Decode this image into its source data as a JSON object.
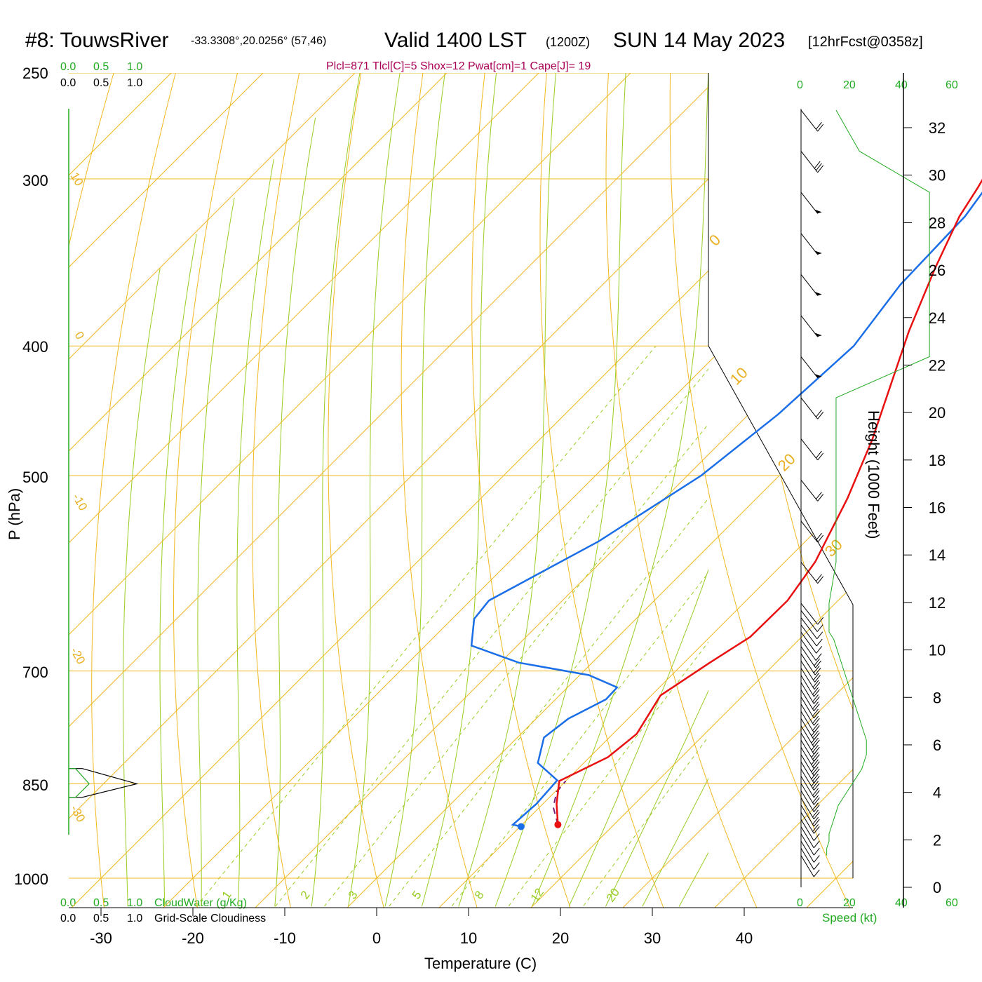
{
  "header": {
    "station": "#8: TouwsRiver",
    "coords": "-33.3308°,20.0256° (57,46)",
    "valid": "Valid 1400 LST",
    "utc": "(1200Z)",
    "date": "SUN 14 May 2023",
    "forecast": "[12hrFcst@0358z]"
  },
  "indices": "Plcl=871 Tlcl[C]=5 Shox=12 Pwat[cm]=1 Cape[J]= 19",
  "cloud_scale_top": {
    "green": [
      "0.0",
      "0.5",
      "1.0"
    ],
    "black": [
      "0.0",
      "0.5",
      "1.0"
    ]
  },
  "cloud_scale_bottom": {
    "green": [
      "0.0",
      "0.5",
      "1.0"
    ],
    "green_label": "CloudWater (g/Kg)",
    "black": [
      "0.0",
      "0.5",
      "1.0"
    ],
    "black_label": "Grid-Scale Cloudiness"
  },
  "wind_speed_axis": {
    "ticks": [
      "0",
      "20",
      "40",
      "60"
    ],
    "label": "Speed (kt)"
  },
  "colors": {
    "temperature": "#e81010",
    "dewpoint": "#1a6ee8",
    "parcel": "#7a1a7a",
    "isotherm": "#f0b820",
    "dry_adiabat": "#f0b820",
    "moist_adiabat": "#99cc22",
    "mixing_ratio": "#99cc22",
    "cloud_green": "#22aa22"
  },
  "chart_data": {
    "type": "line",
    "title": "",
    "xlabel": "Temperature (C)",
    "ylabel": "P (hPa)",
    "right_ylabel": "Height (1000 Feet)",
    "x_ticks": [
      "-30",
      "-20",
      "-10",
      "0",
      "10",
      "20",
      "30",
      "40"
    ],
    "pressure_ticks": [
      "250",
      "300",
      "400",
      "500",
      "700",
      "850",
      "1000"
    ],
    "height_ticks": [
      "32",
      "30",
      "28",
      "26",
      "24",
      "22",
      "20",
      "18",
      "16",
      "14",
      "12",
      "10",
      "8",
      "6",
      "4",
      "2",
      "0"
    ],
    "isotherm_labels": [
      "10",
      "0",
      "-10",
      "-20",
      "-30",
      "0",
      "10",
      "20",
      "30"
    ],
    "mixing_ratio_labels": [
      "1",
      "2",
      "3",
      "5",
      "8",
      "12",
      "20"
    ],
    "series": [
      {
        "name": "Temperature",
        "points": [
          [
            13.9,
            912
          ],
          [
            11.5,
            880
          ],
          [
            9.3,
            846
          ],
          [
            12.0,
            812
          ],
          [
            12.6,
            780
          ],
          [
            11.0,
            730
          ],
          [
            12.8,
            690
          ],
          [
            14.4,
            660
          ],
          [
            14.5,
            620
          ],
          [
            13.3,
            580
          ],
          [
            9.9,
            520
          ],
          [
            6.2,
            470
          ],
          [
            1.5,
            420
          ],
          [
            -1.6,
            390
          ],
          [
            -5.6,
            350
          ],
          [
            -8.6,
            320
          ],
          [
            -9.7,
            305
          ],
          [
            -11.0,
            290
          ],
          [
            -12.0,
            270
          ]
        ]
      },
      {
        "name": "Dewpoint",
        "points": [
          [
            10.1,
            915
          ],
          [
            9.0,
            912
          ],
          [
            9.3,
            880
          ],
          [
            9.0,
            845
          ],
          [
            5.0,
            820
          ],
          [
            2.9,
            785
          ],
          [
            3.5,
            760
          ],
          [
            5.5,
            735
          ],
          [
            5.4,
            720
          ],
          [
            1.0,
            705
          ],
          [
            -8.0,
            690
          ],
          [
            -15.0,
            670
          ],
          [
            -17.6,
            640
          ],
          [
            -18.0,
            620
          ],
          [
            -12.5,
            560
          ],
          [
            -8.5,
            500
          ],
          [
            -6.8,
            450
          ],
          [
            -6.0,
            400
          ],
          [
            -7.6,
            360
          ],
          [
            -8.0,
            320
          ],
          [
            -9.1,
            300
          ],
          [
            -11.0,
            285
          ],
          [
            -12.5,
            270
          ]
        ]
      },
      {
        "name": "Parcel",
        "points": [
          [
            13.9,
            912
          ],
          [
            11.5,
            885
          ],
          [
            10.2,
            862
          ],
          [
            10.0,
            846
          ]
        ]
      }
    ],
    "wind_barbs_speed_kt": [
      15,
      25,
      55,
      55,
      55,
      55,
      55,
      15,
      15,
      15,
      15,
      15,
      12,
      12,
      12,
      12,
      12,
      14,
      15,
      16,
      17,
      18,
      19,
      20,
      21,
      22,
      23,
      24,
      25,
      26,
      27,
      28,
      28,
      28,
      27,
      26,
      24,
      22,
      20,
      18,
      16,
      15,
      14,
      13,
      12,
      12,
      11,
      11
    ],
    "cloud_water_g_per_kg": [
      [
        0.1,
        828
      ],
      [
        0.3,
        850
      ],
      [
        0.1,
        870
      ]
    ],
    "grid_scale_cloudiness": [
      [
        0.2,
        828
      ],
      [
        1.0,
        850
      ],
      [
        0.2,
        870
      ]
    ]
  }
}
